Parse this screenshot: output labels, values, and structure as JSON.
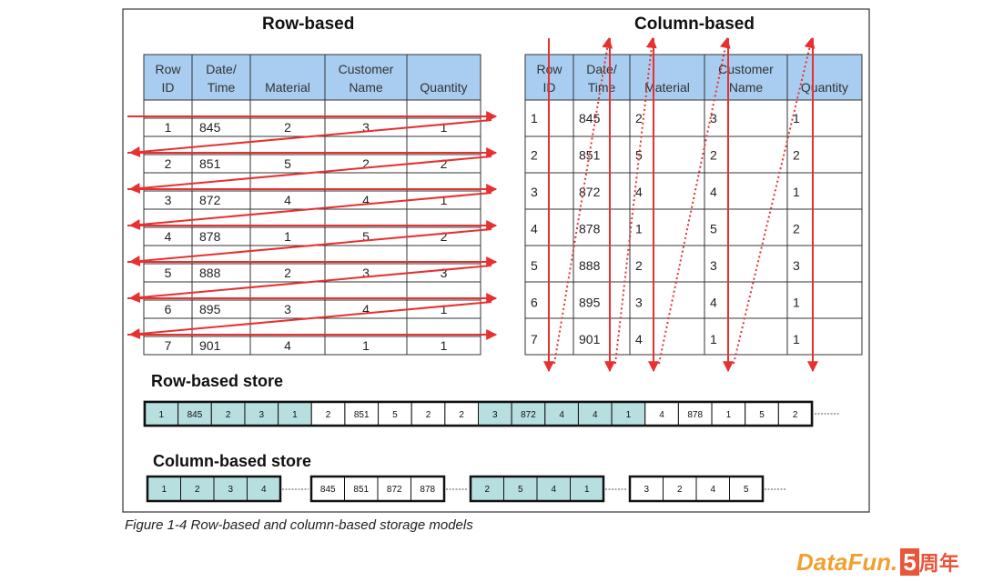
{
  "titles": {
    "row": "Row-based",
    "column": "Column-based",
    "row_store": "Row-based store",
    "column_store": "Column-based store"
  },
  "caption": "Figure 1-4   Row-based and column-based storage models",
  "logo": {
    "text": "DataFun.",
    "five": "5",
    "cn": "周年"
  },
  "colors": {
    "header": "#a8cdf0",
    "store_highlight": "#b7dfe0",
    "arrow": "#e83030"
  },
  "table": {
    "headers": [
      [
        "Row",
        "ID"
      ],
      [
        "Date/",
        "Time"
      ],
      [
        "",
        "Material"
      ],
      [
        "Customer",
        "Name"
      ],
      [
        "",
        "Quantity"
      ]
    ],
    "rows": [
      [
        "1",
        "845",
        "2",
        "3",
        "1"
      ],
      [
        "2",
        "851",
        "5",
        "2",
        "2"
      ],
      [
        "3",
        "872",
        "4",
        "4",
        "1"
      ],
      [
        "4",
        "878",
        "1",
        "5",
        "2"
      ],
      [
        "5",
        "888",
        "2",
        "3",
        "3"
      ],
      [
        "6",
        "895",
        "3",
        "4",
        "1"
      ],
      [
        "7",
        "901",
        "4",
        "1",
        "1"
      ]
    ]
  },
  "row_store": {
    "cells": [
      "1",
      "845",
      "2",
      "3",
      "1",
      "2",
      "851",
      "5",
      "2",
      "2",
      "3",
      "872",
      "4",
      "4",
      "1",
      "4",
      "878",
      "1",
      "5",
      "2"
    ],
    "highlighted_groups": [
      0,
      2
    ]
  },
  "column_store": {
    "groups": [
      [
        "1",
        "2",
        "3",
        "4"
      ],
      [
        "845",
        "851",
        "872",
        "878"
      ],
      [
        "2",
        "5",
        "4",
        "1"
      ],
      [
        "3",
        "2",
        "4",
        "5"
      ]
    ],
    "highlighted_groups": [
      0,
      2
    ]
  }
}
